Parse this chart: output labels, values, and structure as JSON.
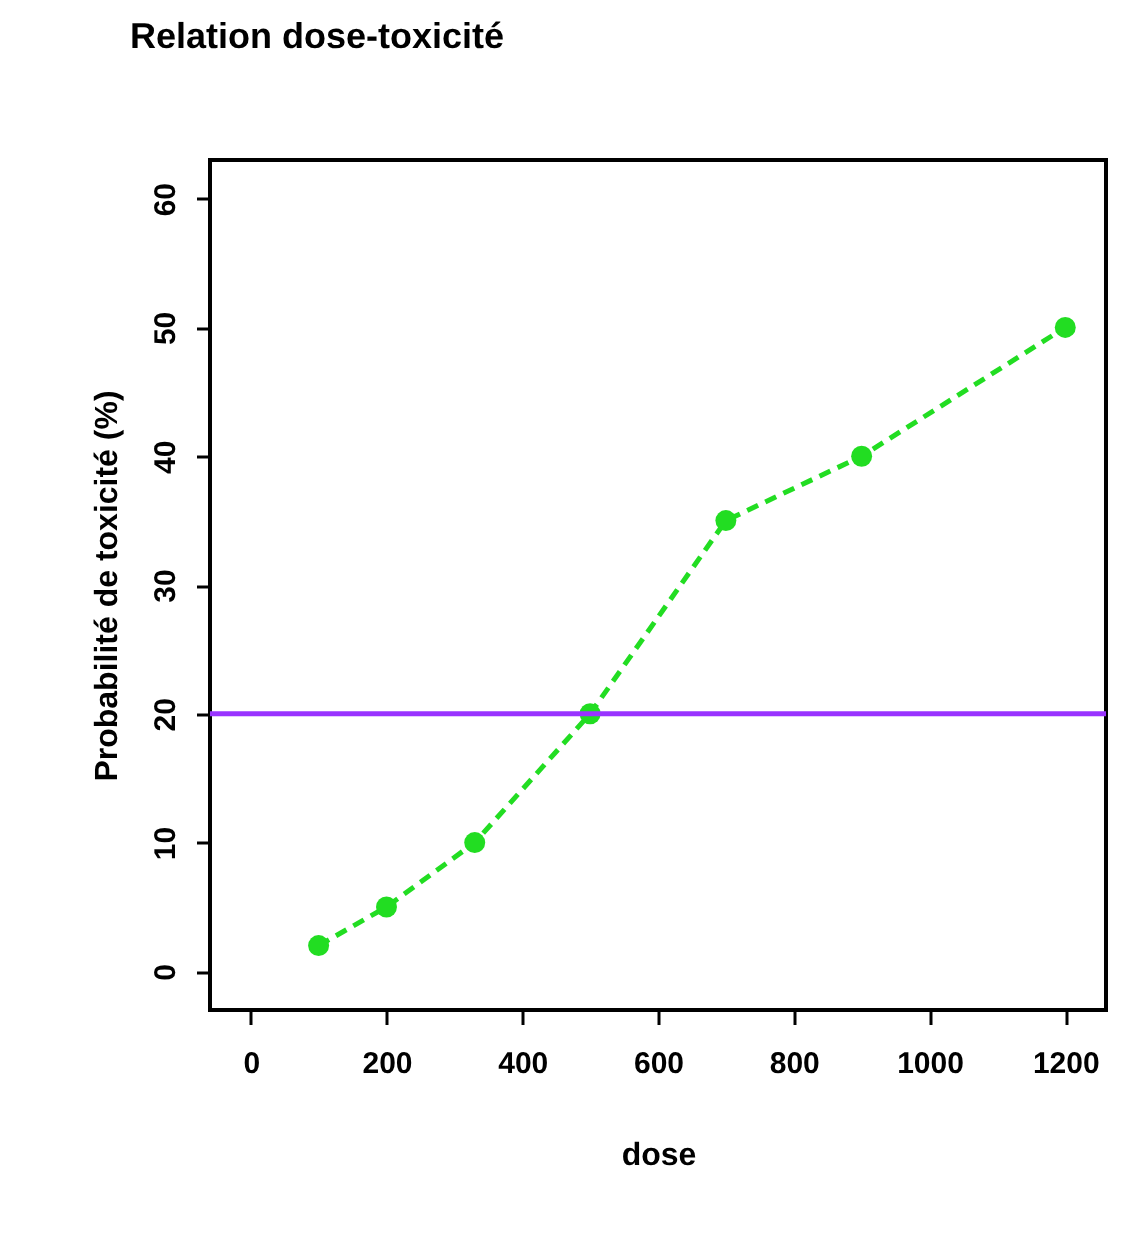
{
  "chart_data": {
    "type": "line",
    "title": "Relation   dose-toxicité",
    "xlabel": "dose",
    "ylabel": "Probabilité de toxicité (%)",
    "x": [
      100,
      200,
      330,
      500,
      700,
      900,
      1200
    ],
    "series": [
      {
        "color": "#22dd22",
        "values": [
          2,
          5,
          10,
          20,
          35,
          40,
          50
        ]
      }
    ],
    "xlim": [
      -60,
      1260
    ],
    "xticks": [
      0,
      200,
      400,
      600,
      800,
      1000,
      1200
    ],
    "ylim": [
      -3,
      63
    ],
    "yticks": [
      0,
      10,
      20,
      30,
      40,
      50,
      60
    ],
    "grid": false,
    "marker": "circle",
    "line_style": "dashed",
    "ref_lines": [
      {
        "axis": "y",
        "value": 20,
        "color": "#9933ff"
      }
    ]
  }
}
